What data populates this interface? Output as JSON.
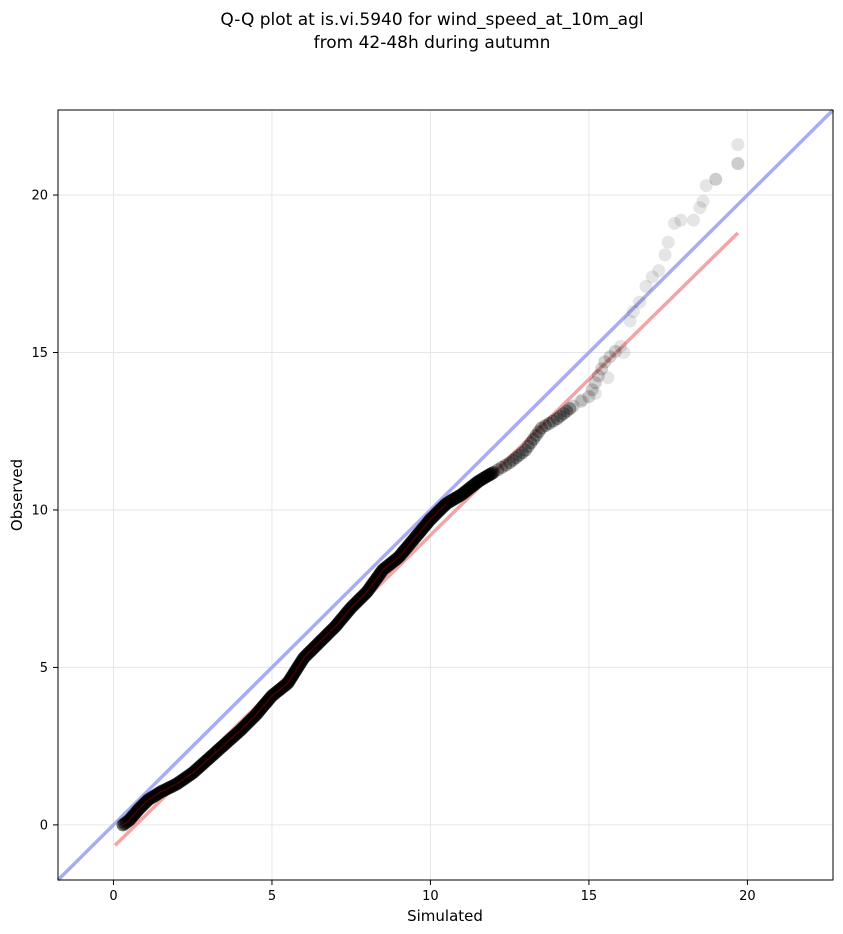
{
  "chart_data": {
    "type": "scatter",
    "title": [
      "Q-Q plot at is.vi.5940 for wind_speed_at_10m_agl",
      "from 42-48h during autumn"
    ],
    "xlabel": "Simulated",
    "ylabel": "Observed",
    "xlim": [
      -1.75,
      22.7
    ],
    "ylim": [
      -1.75,
      22.7
    ],
    "xticks": [
      0,
      5,
      10,
      15,
      20
    ],
    "yticks": [
      0,
      5,
      10,
      15,
      20
    ],
    "grid": true,
    "identity_line": {
      "color": "#a8adf2",
      "from": [
        -1.75,
        -1.75
      ],
      "to": [
        22.7,
        22.7
      ]
    },
    "fit_line": {
      "color": "#f3a5a5",
      "from": [
        0.05,
        -0.65
      ],
      "to": [
        19.7,
        18.8
      ]
    },
    "colors": {
      "points": "#000000",
      "shadow": "#7a0000"
    },
    "quantile_knots": [
      [
        0.3,
        0.0
      ],
      [
        0.5,
        0.15
      ],
      [
        0.8,
        0.5
      ],
      [
        1.1,
        0.8
      ],
      [
        1.5,
        1.05
      ],
      [
        2.0,
        1.3
      ],
      [
        2.5,
        1.65
      ],
      [
        3.0,
        2.1
      ],
      [
        3.5,
        2.55
      ],
      [
        4.0,
        3.0
      ],
      [
        4.5,
        3.5
      ],
      [
        5.0,
        4.1
      ],
      [
        5.5,
        4.5
      ],
      [
        6.0,
        5.3
      ],
      [
        6.5,
        5.8
      ],
      [
        7.0,
        6.3
      ],
      [
        7.5,
        6.9
      ],
      [
        8.0,
        7.4
      ],
      [
        8.5,
        8.1
      ],
      [
        9.0,
        8.5
      ],
      [
        9.5,
        9.1
      ],
      [
        10.0,
        9.7
      ],
      [
        10.5,
        10.2
      ],
      [
        11.0,
        10.5
      ],
      [
        11.5,
        10.9
      ],
      [
        12.0,
        11.2
      ],
      [
        12.5,
        11.5
      ],
      [
        13.0,
        11.9
      ],
      [
        13.5,
        12.6
      ],
      [
        14.0,
        12.9
      ],
      [
        14.5,
        13.3
      ],
      [
        15.0,
        13.6
      ],
      [
        15.5,
        14.7
      ],
      [
        16.0,
        15.2
      ],
      [
        16.3,
        16.0
      ],
      [
        16.6,
        16.6
      ],
      [
        17.0,
        17.4
      ],
      [
        17.5,
        18.5
      ],
      [
        17.9,
        19.2
      ],
      [
        18.6,
        19.8
      ],
      [
        19.0,
        20.5
      ],
      [
        19.7,
        21.0
      ],
      [
        19.7,
        21.6
      ]
    ],
    "tail_points": [
      [
        14.8,
        13.5
      ],
      [
        15.2,
        13.7
      ],
      [
        15.6,
        14.2
      ],
      [
        16.1,
        15.0
      ],
      [
        16.4,
        16.3
      ],
      [
        16.8,
        17.1
      ],
      [
        17.2,
        17.6
      ],
      [
        17.4,
        18.1
      ],
      [
        17.7,
        19.1
      ],
      [
        18.3,
        19.2
      ],
      [
        18.5,
        19.6
      ],
      [
        18.7,
        20.3
      ],
      [
        19.0,
        20.5
      ],
      [
        19.7,
        21.0
      ],
      [
        19.7,
        21.6
      ]
    ]
  }
}
